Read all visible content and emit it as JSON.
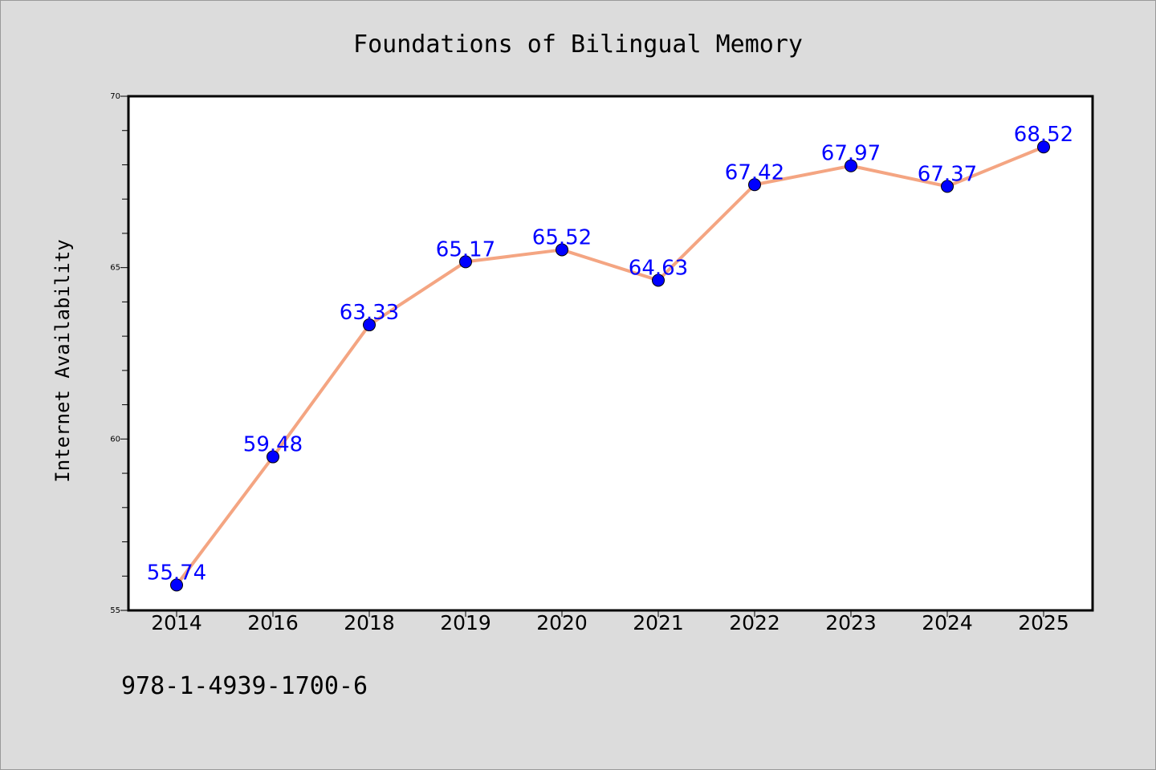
{
  "chart_data": {
    "type": "line",
    "title": "Foundations of Bilingual Memory",
    "ylabel": "Internet Availability",
    "xlabel": "",
    "categories": [
      "2014",
      "2016",
      "2018",
      "2019",
      "2020",
      "2021",
      "2022",
      "2023",
      "2024",
      "2025"
    ],
    "series": [
      {
        "values": [
          55.74,
          59.48,
          63.33,
          65.17,
          65.52,
          64.63,
          67.42,
          67.97,
          67.37,
          68.52
        ],
        "data_labels": [
          "55.74",
          "59.48",
          "63.33",
          "65.17",
          "65.52",
          "64.63",
          "67.42",
          "67.97",
          "67.37",
          "68.52"
        ],
        "line_color": "#f4a582",
        "marker_color": "#0000ff",
        "label_color": "#0000ff"
      }
    ],
    "ylim": [
      55,
      70
    ],
    "yticks": [
      55,
      60,
      65,
      70
    ],
    "ytick_labels": [
      "55",
      "60",
      "65",
      "70"
    ],
    "y_minor_step": 1,
    "grid": false,
    "legend": "none"
  },
  "footer": {
    "isbn": "978-1-4939-1700-6"
  },
  "colors": {
    "background": "#dcdcdc",
    "plot_background": "#ffffff",
    "axis": "#000000"
  }
}
